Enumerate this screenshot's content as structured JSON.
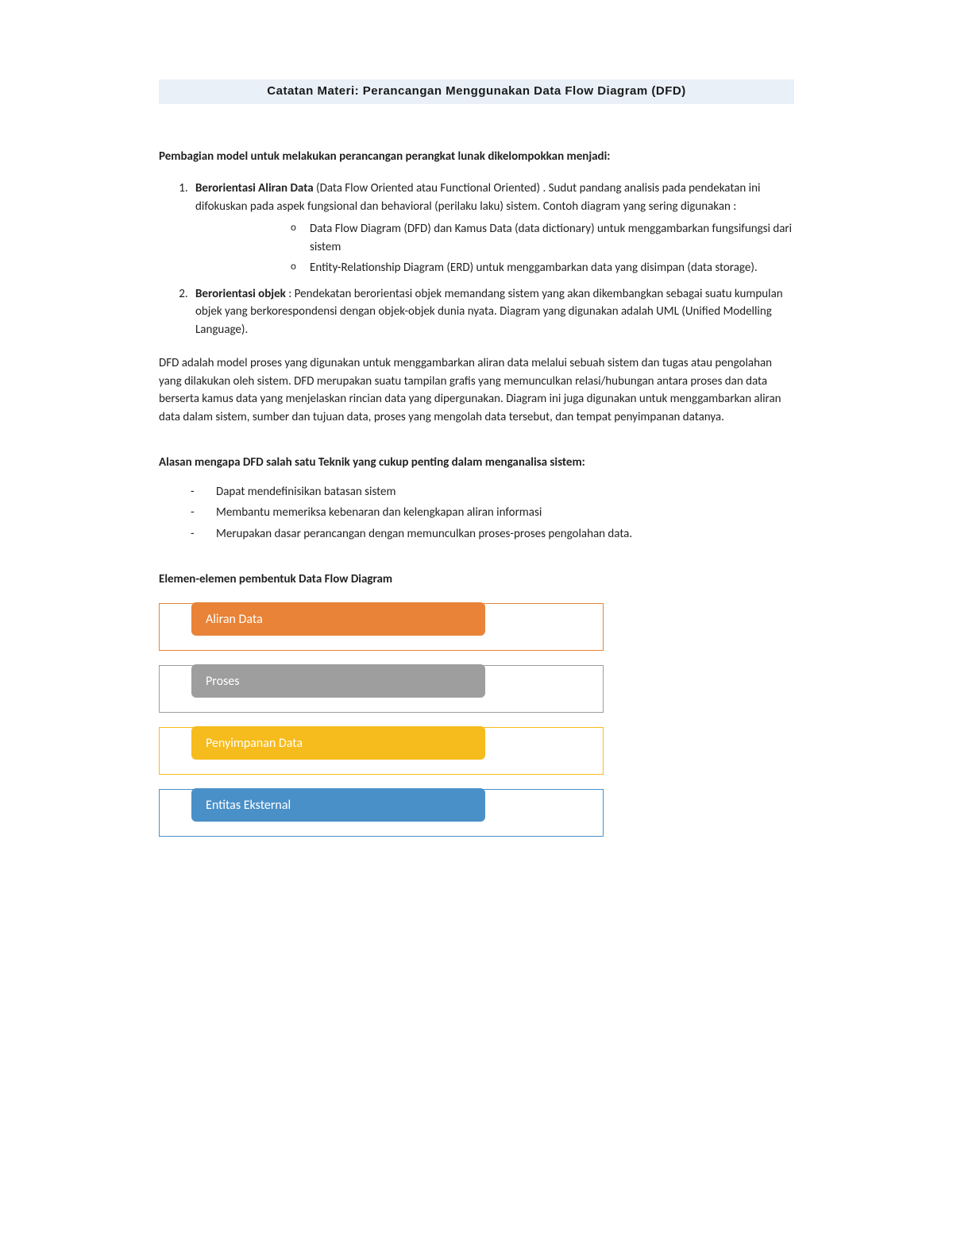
{
  "title": "Catatan Materi: Perancangan Menggunakan Data Flow Diagram  (DFD)",
  "intro_heading": "Pembagian model untuk melakukan perancangan perangkat lunak dikelompokkan menjadi:",
  "item1": {
    "label": "Berorientasi Aliran Data",
    "rest": " (Data Flow Oriented atau Functional Oriented) . Sudut pandang analisis pada pendekatan ini difokuskan pada aspek fungsional dan behavioral (perilaku laku) sistem. Contoh diagram yang sering digunakan :",
    "sub1": "Data Flow Diagram (DFD) dan Kamus Data (data dictionary) untuk menggambarkan fungsifungsi dari sistem",
    "sub2": "Entity-Relationship Diagram (ERD) untuk menggambarkan data yang disimpan (data storage)."
  },
  "item2": {
    "label": "Berorientasi objek",
    "rest": " : Pendekatan berorientasi objek memandang sistem yang akan dikembangkan sebagai suatu kumpulan objek yang berkorespondensi dengan objek-objek dunia nyata. Diagram yang digunakan adalah UML (Unified Modelling Language)."
  },
  "paragraph": "DFD adalah model proses yang digunakan untuk menggambarkan aliran data melalui sebuah sistem dan tugas atau pengolahan yang dilakukan oleh sistem. DFD merupakan suatu tampilan grafis yang memunculkan relasi/hubungan antara proses dan data berserta kamus data yang menjelaskan rincian data yang dipergunakan. Diagram ini juga digunakan untuk menggambarkan aliran data dalam sistem, sumber dan tujuan data, proses yang mengolah data tersebut, dan tempat penyimpanan datanya.",
  "reasons_heading": "Alasan mengapa DFD salah satu Teknik yang cukup penting dalam menganalisa sistem:",
  "reasons": [
    "Dapat mendefinisikan batasan sistem",
    "Membantu memeriksa kebenaran dan kelengkapan aliran informasi",
    "Merupakan dasar perancangan dengan memunculkan proses-proses pengolahan data."
  ],
  "elements_heading": "Elemen-elemen pembentuk Data Flow Diagram",
  "elements": [
    {
      "label": "Aliran Data",
      "color": "#e98337"
    },
    {
      "label": "Proses",
      "color": "#9e9e9e"
    },
    {
      "label": "Penyimpanan Data",
      "color": "#f6bb1c"
    },
    {
      "label": "Entitas Eksternal",
      "color": "#4a90c8"
    }
  ],
  "colors": {
    "title_bg": "#e9f0f7",
    "text": "#222222"
  }
}
